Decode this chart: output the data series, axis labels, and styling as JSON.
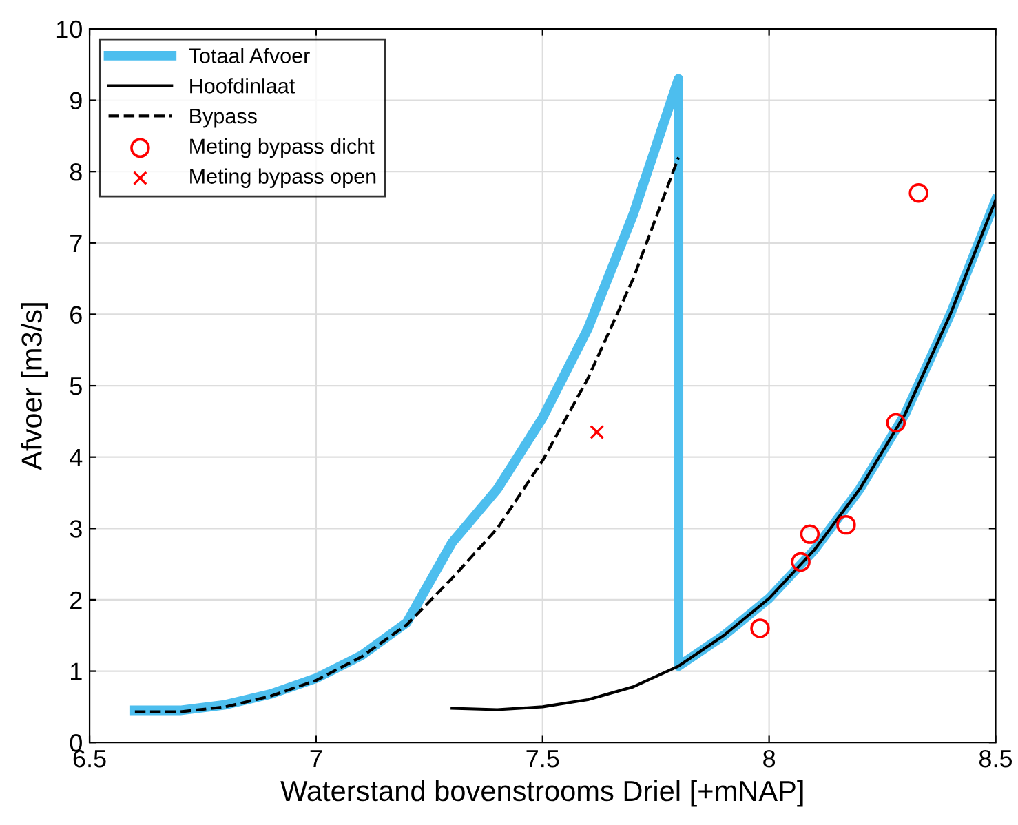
{
  "chart_data": {
    "type": "line",
    "xlabel": "Waterstand bovenstrooms Driel [+mNAP]",
    "ylabel": "Afvoer [m3/s]",
    "xlim": [
      6.5,
      8.5
    ],
    "ylim": [
      0,
      10
    ],
    "xticks": [
      6.5,
      7,
      7.5,
      8,
      8.5
    ],
    "yticks": [
      0,
      1,
      2,
      3,
      4,
      5,
      6,
      7,
      8,
      9,
      10
    ],
    "grid": true,
    "legend": "top left",
    "series": [
      {
        "name": "Totaal Afvoer",
        "color": "#4dbeee",
        "line_style": "solid",
        "marker": "none",
        "x": [
          6.6,
          6.7,
          6.8,
          6.9,
          7.0,
          7.1,
          7.2,
          7.3,
          7.4,
          7.5,
          7.6,
          7.7,
          7.8,
          7.8,
          7.9,
          8.0,
          8.1,
          8.2,
          8.3,
          8.4,
          8.5
        ],
        "values": [
          0.45,
          0.45,
          0.53,
          0.68,
          0.9,
          1.22,
          1.68,
          2.8,
          3.55,
          4.55,
          5.8,
          7.4,
          9.3,
          1.07,
          1.5,
          2.02,
          2.7,
          3.55,
          4.6,
          6.0,
          7.6
        ]
      },
      {
        "name": "Hoofdinlaat",
        "color": "#000000",
        "line_style": "solid",
        "marker": "none",
        "x": [
          7.3,
          7.4,
          7.5,
          7.6,
          7.7,
          7.8,
          7.9,
          8.0,
          8.1,
          8.2,
          8.3,
          8.4,
          8.5
        ],
        "values": [
          0.48,
          0.46,
          0.5,
          0.6,
          0.78,
          1.07,
          1.5,
          2.02,
          2.7,
          3.55,
          4.6,
          6.0,
          7.6
        ]
      },
      {
        "name": "Bypass",
        "color": "#000000",
        "line_style": "dashed",
        "marker": "none",
        "x": [
          6.6,
          6.7,
          6.8,
          6.9,
          7.0,
          7.1,
          7.2,
          7.3,
          7.4,
          7.5,
          7.6,
          7.7,
          7.8
        ],
        "values": [
          0.43,
          0.43,
          0.5,
          0.65,
          0.87,
          1.2,
          1.65,
          2.3,
          3.0,
          3.95,
          5.1,
          6.5,
          8.2
        ]
      },
      {
        "name": "Meting bypass dicht",
        "type": "scatter",
        "color": "#ff0000",
        "marker": "circle",
        "x": [
          7.98,
          8.07,
          8.09,
          8.17,
          8.28,
          8.33
        ],
        "values": [
          1.6,
          2.53,
          2.92,
          3.05,
          4.48,
          7.7
        ]
      },
      {
        "name": "Meting bypass open",
        "type": "scatter",
        "color": "#ff0000",
        "marker": "cross",
        "x": [
          7.62
        ],
        "values": [
          4.35
        ]
      }
    ]
  }
}
